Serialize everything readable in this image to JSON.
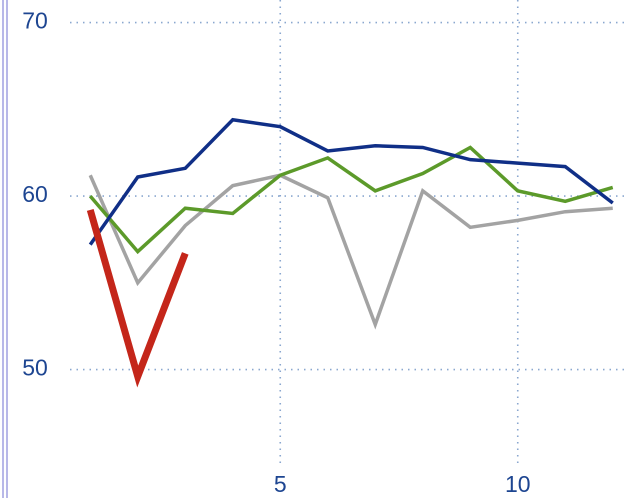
{
  "chart_data": {
    "type": "line",
    "x": [
      1,
      2,
      3,
      4,
      5,
      6,
      7,
      8,
      9,
      10,
      11,
      12
    ],
    "series": [
      {
        "color": "#a3a3a3",
        "width": 3.5,
        "values": [
          61.2,
          55.0,
          58.3,
          60.6,
          61.2,
          59.9,
          52.6,
          60.3,
          58.2,
          58.6,
          59.1,
          59.3
        ]
      },
      {
        "color": "#5c9a2a",
        "width": 3.5,
        "values": [
          60.0,
          56.8,
          59.3,
          59.0,
          61.2,
          62.2,
          60.3,
          61.3,
          62.8,
          60.3,
          59.7,
          60.5
        ]
      },
      {
        "color": "#102f87",
        "width": 3.5,
        "values": [
          57.2,
          61.1,
          61.6,
          64.4,
          64.0,
          62.6,
          62.9,
          62.8,
          62.1,
          61.9,
          61.7,
          59.6
        ]
      },
      {
        "color": "#c4261a",
        "width": 7,
        "values": [
          59.2,
          49.6,
          56.7,
          null,
          null,
          null,
          null,
          null,
          null,
          null,
          null,
          null
        ]
      }
    ],
    "xlim": [
      -0.9,
      12.3
    ],
    "ylim": [
      42.6,
      71.3
    ],
    "xticks": [
      5,
      10
    ],
    "yticks": [
      50,
      60,
      70
    ],
    "grid": true
  }
}
